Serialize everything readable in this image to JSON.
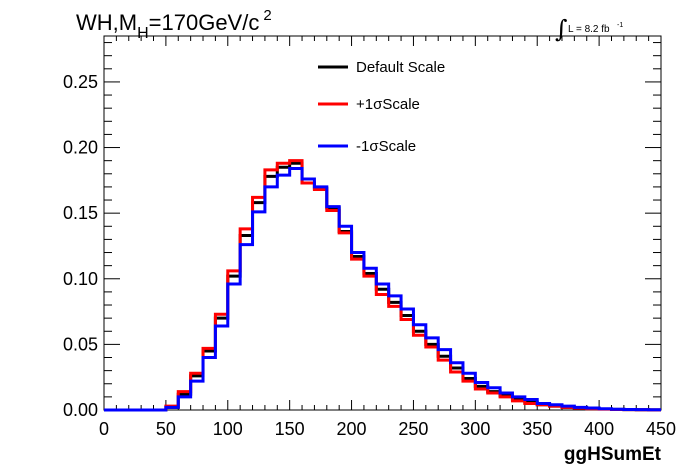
{
  "chart_data": {
    "type": "line",
    "title_main": "WH,M",
    "title_sub": "H",
    "title_rest": "=170GeV/c",
    "title_sup": "2",
    "lumi_sign": "∫",
    "lumi_text": "L = 8.2 fb",
    "lumi_sup": "-1",
    "xlabel": "ggHSumEt",
    "ylabel": "",
    "xlim": [
      0,
      450
    ],
    "ylim": [
      0,
      0.285
    ],
    "x_ticks": [
      "0",
      "50",
      "100",
      "150",
      "200",
      "250",
      "300",
      "350",
      "400",
      "450"
    ],
    "y_ticks": [
      "0.00",
      "0.05",
      "0.10",
      "0.15",
      "0.20",
      "0.25"
    ],
    "y_tick_values": [
      0,
      0.05,
      0.1,
      0.15,
      0.2,
      0.25
    ],
    "x_tick_values": [
      0,
      50,
      100,
      150,
      200,
      250,
      300,
      350,
      400,
      450
    ],
    "grid": false,
    "legend_position": "top-center",
    "bin_edges": [
      0,
      10,
      20,
      30,
      40,
      50,
      60,
      70,
      80,
      90,
      100,
      110,
      120,
      130,
      140,
      150,
      160,
      170,
      180,
      190,
      200,
      210,
      220,
      230,
      240,
      250,
      260,
      270,
      280,
      290,
      300,
      310,
      320,
      330,
      340,
      350,
      360,
      370,
      380,
      390,
      400,
      410,
      420,
      430,
      440,
      450
    ],
    "series": [
      {
        "name": "Default Scale",
        "color": "#000000",
        "values": [
          0,
          0,
          0,
          0,
          0,
          0.002,
          0.012,
          0.026,
          0.045,
          0.07,
          0.102,
          0.133,
          0.158,
          0.178,
          0.185,
          0.188,
          0.173,
          0.169,
          0.154,
          0.136,
          0.117,
          0.104,
          0.092,
          0.082,
          0.072,
          0.06,
          0.05,
          0.041,
          0.032,
          0.024,
          0.018,
          0.014,
          0.011,
          0.008,
          0.006,
          0.004,
          0.003,
          0.002,
          0.0015,
          0.001,
          0.0008,
          0.0005,
          0.0003,
          0.0002,
          0.0001
        ]
      },
      {
        "name": "+1σScale",
        "color": "#ff0000",
        "values": [
          0,
          0,
          0,
          0,
          0,
          0.003,
          0.014,
          0.028,
          0.047,
          0.073,
          0.106,
          0.138,
          0.162,
          0.183,
          0.188,
          0.19,
          0.173,
          0.168,
          0.152,
          0.135,
          0.115,
          0.102,
          0.088,
          0.079,
          0.069,
          0.057,
          0.048,
          0.038,
          0.029,
          0.022,
          0.016,
          0.013,
          0.01,
          0.007,
          0.005,
          0.004,
          0.003,
          0.002,
          0.0014,
          0.001,
          0.0007,
          0.0004,
          0.0003,
          0.0002,
          0.0001
        ]
      },
      {
        "name": "-1σScale",
        "color": "#0000ff",
        "values": [
          0,
          0,
          0,
          0,
          0,
          0.002,
          0.01,
          0.022,
          0.04,
          0.064,
          0.096,
          0.126,
          0.151,
          0.17,
          0.179,
          0.184,
          0.176,
          0.17,
          0.155,
          0.14,
          0.12,
          0.108,
          0.096,
          0.087,
          0.077,
          0.065,
          0.055,
          0.046,
          0.036,
          0.028,
          0.021,
          0.017,
          0.013,
          0.01,
          0.008,
          0.005,
          0.004,
          0.003,
          0.002,
          0.0015,
          0.001,
          0.0006,
          0.0004,
          0.0003,
          0.0002
        ]
      }
    ]
  }
}
